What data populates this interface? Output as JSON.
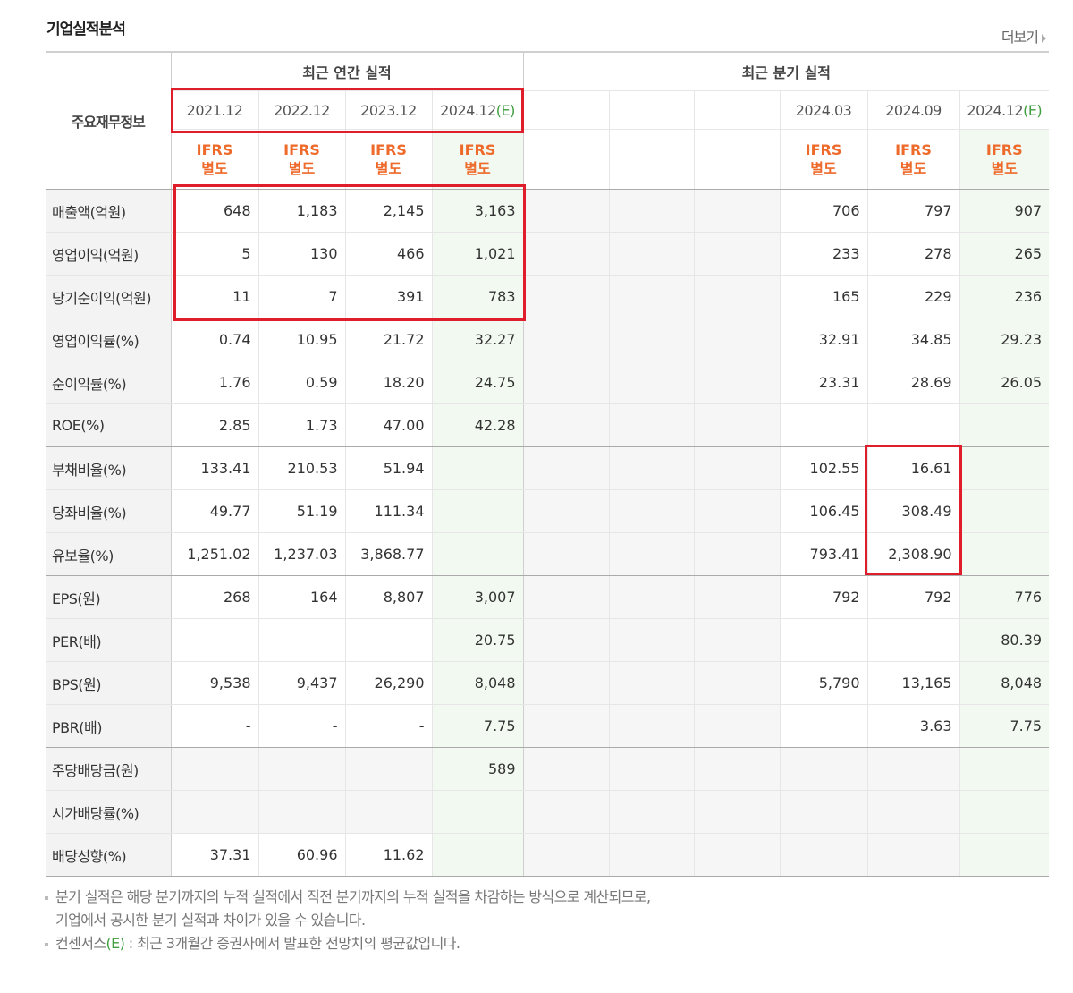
{
  "title": "기업실적분석",
  "more_label": "더보기",
  "header": {
    "row_label": "주요재무정보",
    "annual_group": "최근 연간 실적",
    "quarter_group": "최근 분기 실적",
    "annual_periods": [
      "2021.12",
      "2022.12",
      "2023.12",
      "2024.12"
    ],
    "annual_estimate_suffix": "(E)",
    "quarter_periods": [
      "",
      "",
      "",
      "2024.03",
      "2024.09",
      "2024.12"
    ],
    "quarter_estimate_suffix": "(E)",
    "ifrs_line1": "IFRS",
    "ifrs_line2": "별도"
  },
  "rows": [
    {
      "label": "매출액(억원)",
      "annual": [
        "648",
        "1,183",
        "2,145",
        "3,163"
      ],
      "quarter": [
        "",
        "",
        "",
        "706",
        "797",
        "907"
      ]
    },
    {
      "label": "영업이익(억원)",
      "annual": [
        "5",
        "130",
        "466",
        "1,021"
      ],
      "quarter": [
        "",
        "",
        "",
        "233",
        "278",
        "265"
      ]
    },
    {
      "label": "당기순이익(억원)",
      "annual": [
        "11",
        "7",
        "391",
        "783"
      ],
      "quarter": [
        "",
        "",
        "",
        "165",
        "229",
        "236"
      ]
    },
    {
      "label": "영업이익률(%)",
      "annual": [
        "0.74",
        "10.95",
        "21.72",
        "32.27"
      ],
      "quarter": [
        "",
        "",
        "",
        "32.91",
        "34.85",
        "29.23"
      ]
    },
    {
      "label": "순이익률(%)",
      "annual": [
        "1.76",
        "0.59",
        "18.20",
        "24.75"
      ],
      "quarter": [
        "",
        "",
        "",
        "23.31",
        "28.69",
        "26.05"
      ]
    },
    {
      "label": "ROE(%)",
      "annual": [
        "2.85",
        "1.73",
        "47.00",
        "42.28"
      ],
      "quarter": [
        "",
        "",
        "",
        "",
        "",
        ""
      ]
    },
    {
      "label": "부채비율(%)",
      "annual": [
        "133.41",
        "210.53",
        "51.94",
        ""
      ],
      "quarter": [
        "",
        "",
        "",
        "102.55",
        "16.61",
        ""
      ]
    },
    {
      "label": "당좌비율(%)",
      "annual": [
        "49.77",
        "51.19",
        "111.34",
        ""
      ],
      "quarter": [
        "",
        "",
        "",
        "106.45",
        "308.49",
        ""
      ]
    },
    {
      "label": "유보율(%)",
      "annual": [
        "1,251.02",
        "1,237.03",
        "3,868.77",
        ""
      ],
      "quarter": [
        "",
        "",
        "",
        "793.41",
        "2,308.90",
        ""
      ]
    },
    {
      "label": "EPS(원)",
      "annual": [
        "268",
        "164",
        "8,807",
        "3,007"
      ],
      "quarter": [
        "",
        "",
        "",
        "792",
        "792",
        "776"
      ]
    },
    {
      "label": "PER(배)",
      "annual": [
        "",
        "",
        "",
        "20.75"
      ],
      "quarter": [
        "",
        "",
        "",
        "",
        "",
        "80.39"
      ]
    },
    {
      "label": "BPS(원)",
      "annual": [
        "9,538",
        "9,437",
        "26,290",
        "8,048"
      ],
      "quarter": [
        "",
        "",
        "",
        "5,790",
        "13,165",
        "8,048"
      ]
    },
    {
      "label": "PBR(배)",
      "annual": [
        "-",
        "-",
        "-",
        "7.75"
      ],
      "quarter": [
        "",
        "",
        "",
        "",
        "3.63",
        "7.75"
      ]
    },
    {
      "label": "주당배당금(원)",
      "annual": [
        "",
        "",
        "",
        "589"
      ],
      "quarter": [
        "",
        "",
        "",
        "",
        "",
        ""
      ]
    },
    {
      "label": "시가배당률(%)",
      "annual": [
        "",
        "",
        "",
        ""
      ],
      "quarter": [
        "",
        "",
        "",
        "",
        "",
        ""
      ]
    },
    {
      "label": "배당성향(%)",
      "annual": [
        "37.31",
        "60.96",
        "11.62",
        ""
      ],
      "quarter": [
        "",
        "",
        "",
        "",
        "",
        ""
      ]
    }
  ],
  "notes": {
    "line1": "분기 실적은 해당 분기까지의 누적 실적에서 직전 분기까지의 누적 실적을 차감하는 방식으로 계산되므로,",
    "line2": "기업에서 공시한 분기 실적과 차이가 있을 수 있습니다.",
    "line3_prefix": "컨센서스",
    "line3_mark": "(E)",
    "line3_suffix": " : 최근 3개월간 증권사에서 발표한 전망치의 평균값입니다."
  },
  "colors": {
    "highlight_box": "#e01e2b",
    "ifrs_text": "#ee6a2b",
    "estimate_mark": "#3f9e3f",
    "estimate_bg": "#f2f9f0"
  }
}
